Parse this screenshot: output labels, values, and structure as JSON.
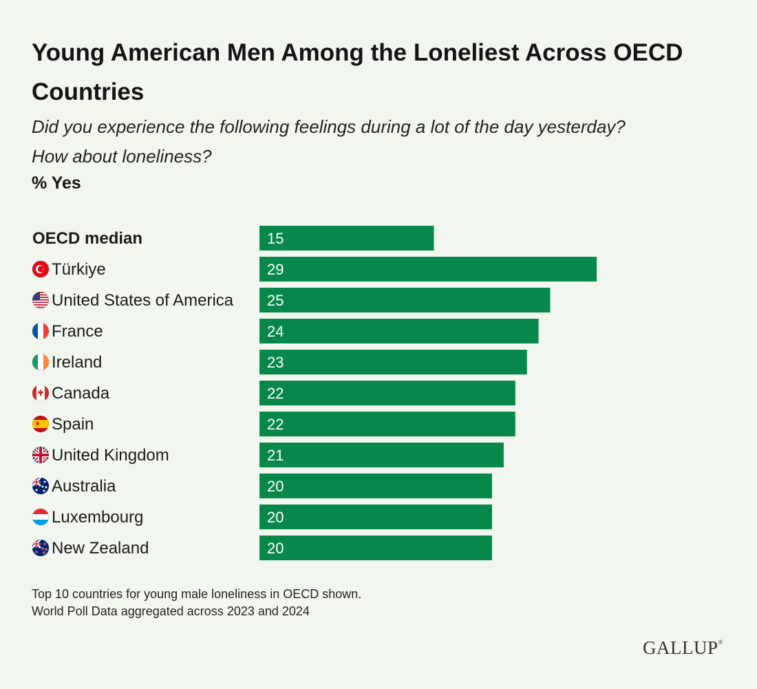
{
  "header": {
    "title": "Young American Men Among the Loneliest Across OECD Countries",
    "subtitle_line1": "Did you experience the following feelings during a lot of the day yesterday?",
    "subtitle_line2": "How about loneliness?",
    "unit": "% Yes"
  },
  "chart_data": {
    "type": "bar",
    "orientation": "horizontal",
    "title": "Young American Men Among the Loneliest Across OECD Countries",
    "ylabel": "% Yes",
    "bar_color": "#08874a",
    "categories": [
      "OECD median",
      "Türkiye",
      "United States of America",
      "France",
      "Ireland",
      "Canada",
      "Spain",
      "United Kingdom",
      "Australia",
      "Luxembourg",
      "New Zealand"
    ],
    "values": [
      15,
      29,
      25,
      24,
      23,
      22,
      22,
      21,
      20,
      20,
      20
    ],
    "icons": [
      "",
      "turkey-flag-icon",
      "usa-flag-icon",
      "france-flag-icon",
      "ireland-flag-icon",
      "canada-flag-icon",
      "spain-flag-icon",
      "uk-flag-icon",
      "australia-flag-icon",
      "luxembourg-flag-icon",
      "new-zealand-flag-icon"
    ],
    "xlim": [
      0,
      30
    ]
  },
  "footer": {
    "note_line1": "Top 10 countries for young male loneliness in OECD shown.",
    "note_line2": "World Poll Data aggregated across 2023 and 2024",
    "logo": "GALLUP",
    "logo_mark": "®"
  }
}
